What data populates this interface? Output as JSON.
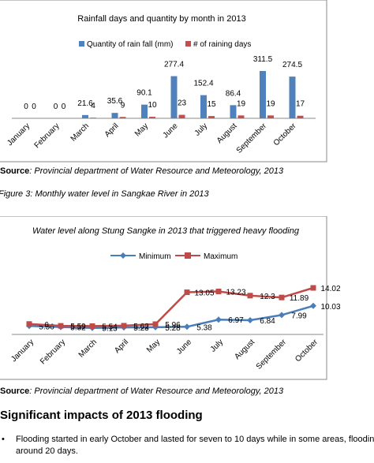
{
  "chart_data": [
    {
      "type": "bar",
      "title": "Rainfall days and quantity by month in 2013",
      "categories": [
        "January",
        "February",
        "March",
        "April",
        "May",
        "June",
        "July",
        "August",
        "September",
        "October"
      ],
      "series": [
        {
          "name": "Quantity of rain fall (mm)",
          "color": "#4f81bd",
          "values": [
            0,
            0,
            21.6,
            35.6,
            90.1,
            277.4,
            152.4,
            86.4,
            311.5,
            274.5
          ]
        },
        {
          "name": "# of raining days",
          "color": "#c0504d",
          "values": [
            0,
            0,
            4,
            9,
            10,
            23,
            15,
            19,
            19,
            17
          ]
        }
      ]
    },
    {
      "type": "line",
      "title": "Water level along Stung Sangke in 2013 that triggered heavy flooding",
      "categories": [
        "January",
        "February",
        "March",
        "April",
        "May",
        "June",
        "July",
        "August",
        "September",
        "October"
      ],
      "series": [
        {
          "name": "Minimum",
          "color": "#4a7ebb",
          "marker": "diamond",
          "values": [
            5.56,
            5.32,
            5.13,
            5.23,
            5.28,
            5.38,
            6.97,
            6.84,
            7.99,
            10.03
          ]
        },
        {
          "name": "Maximum",
          "color": "#be4b48",
          "marker": "square",
          "values": [
            6,
            5.59,
            5.54,
            5.62,
            5.96,
            13.05,
            13.23,
            12.3,
            11.89,
            14.02
          ]
        }
      ]
    }
  ],
  "document": {
    "source_1": {
      "label": "Source",
      "text": ": Provincial department of Water Resource and Meteorology, 2013"
    },
    "figure_caption": "Figure 3: Monthly water level in Sangkae River in 2013",
    "source_2": {
      "label": "Source",
      "text": ": Provincial department of Water Resource and Meteorology, 2013"
    },
    "heading": "Significant impacts of 2013 flooding",
    "bullet_1": [
      "Flooding started in early October and lasted for seven to 10 days while in some areas, flooding",
      "around 20 days."
    ]
  }
}
